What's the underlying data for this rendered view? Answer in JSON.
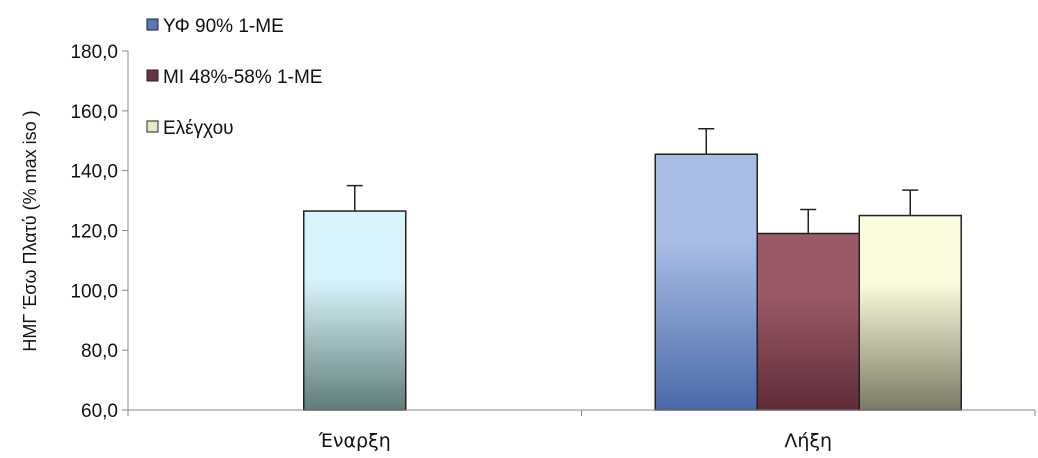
{
  "chart_data": {
    "type": "bar",
    "ylabel": "ΗΜΓ Έσω Πλατύ (% max iso )",
    "ylim": [
      60,
      180
    ],
    "yticks": [
      60,
      80,
      100,
      120,
      140,
      160,
      180
    ],
    "ytick_labels": [
      "60,0",
      "80,0",
      "100,0",
      "120,0",
      "140,0",
      "160,0",
      "180,0"
    ],
    "categories": [
      "Έναρξη",
      "Λήξη"
    ],
    "groups": [
      {
        "category": "Έναρξη",
        "bars": [
          {
            "series": "Έναρξη",
            "value": 126.5,
            "error": 8.5,
            "color_top": "#d8f4fb",
            "color_bottom": "#607c78"
          }
        ]
      },
      {
        "category": "Λήξη",
        "bars": [
          {
            "series": "ΥΦ 90% 1-ΜΕ",
            "value": 145.5,
            "error": 8.5,
            "color_top": "#a8bce4",
            "color_bottom": "#4a68a8"
          },
          {
            "series": "ΜΙ 48%-58% 1-ΜΕ",
            "value": 119,
            "error": 8,
            "color_top": "#9a5a66",
            "color_bottom": "#5e2c38"
          },
          {
            "series": "Ελέγχου",
            "value": 125,
            "error": 8.5,
            "color_top": "#fafadc",
            "color_bottom": "#7a7a66"
          }
        ]
      }
    ],
    "legend": [
      {
        "name": "ΥΦ 90% 1-ΜΕ",
        "color": "#5a78b8"
      },
      {
        "name": "ΜΙ 48%-58% 1-ΜΕ",
        "color": "#6e3442"
      },
      {
        "name": "Ελέγχου",
        "color": "#e8e8c4"
      }
    ],
    "legend_position": "top-left",
    "grid": false
  }
}
